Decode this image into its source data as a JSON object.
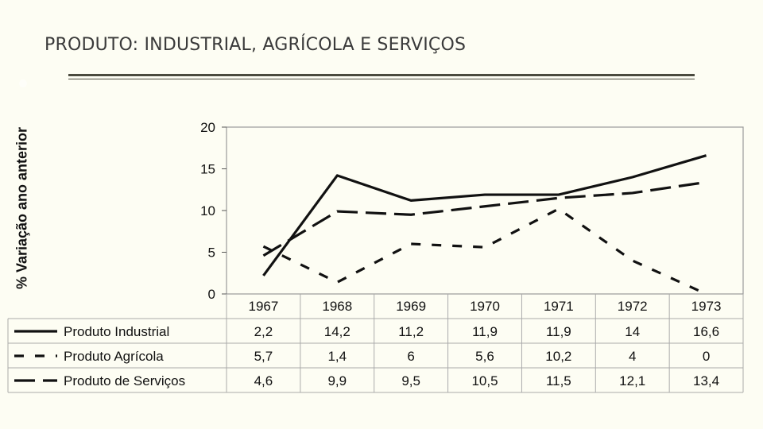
{
  "slide": {
    "title": "PRODUTO: INDUSTRIAL, AGRÍCOLA E  SERVIÇOS"
  },
  "chart_data": {
    "type": "line",
    "title": "PRODUTO: INDUSTRIAL, AGRÍCOLA E  SERVIÇOS",
    "xlabel": "",
    "ylabel": "% Variação ano anterior",
    "ylim": [
      0,
      20
    ],
    "yticks": [
      0,
      5,
      10,
      15,
      20
    ],
    "grid": false,
    "legend": "bottom-left data table",
    "categories": [
      "1967",
      "1968",
      "1969",
      "1970",
      "1971",
      "1972",
      "1973"
    ],
    "series": [
      {
        "name": "Produto Industrial",
        "style": "solid",
        "color": "#111111",
        "values": [
          2.2,
          14.2,
          11.2,
          11.9,
          11.9,
          14,
          16.6
        ],
        "labels": [
          "2,2",
          "14,2",
          "11,2",
          "11,9",
          "11,9",
          "14",
          "16,6"
        ]
      },
      {
        "name": "Produto Agrícola",
        "style": "short-dash",
        "color": "#111111",
        "values": [
          5.7,
          1.4,
          6,
          5.6,
          10.2,
          4,
          0
        ],
        "labels": [
          "5,7",
          "1,4",
          "6",
          "5,6",
          "10,2",
          "4",
          "0"
        ]
      },
      {
        "name": "Produto de Serviços",
        "style": "long-dash",
        "color": "#111111",
        "values": [
          4.6,
          9.9,
          9.5,
          10.5,
          11.5,
          12.1,
          13.4
        ],
        "labels": [
          "4,6",
          "9,9",
          "9,5",
          "10,5",
          "11,5",
          "12,1",
          "13,4"
        ]
      }
    ]
  }
}
